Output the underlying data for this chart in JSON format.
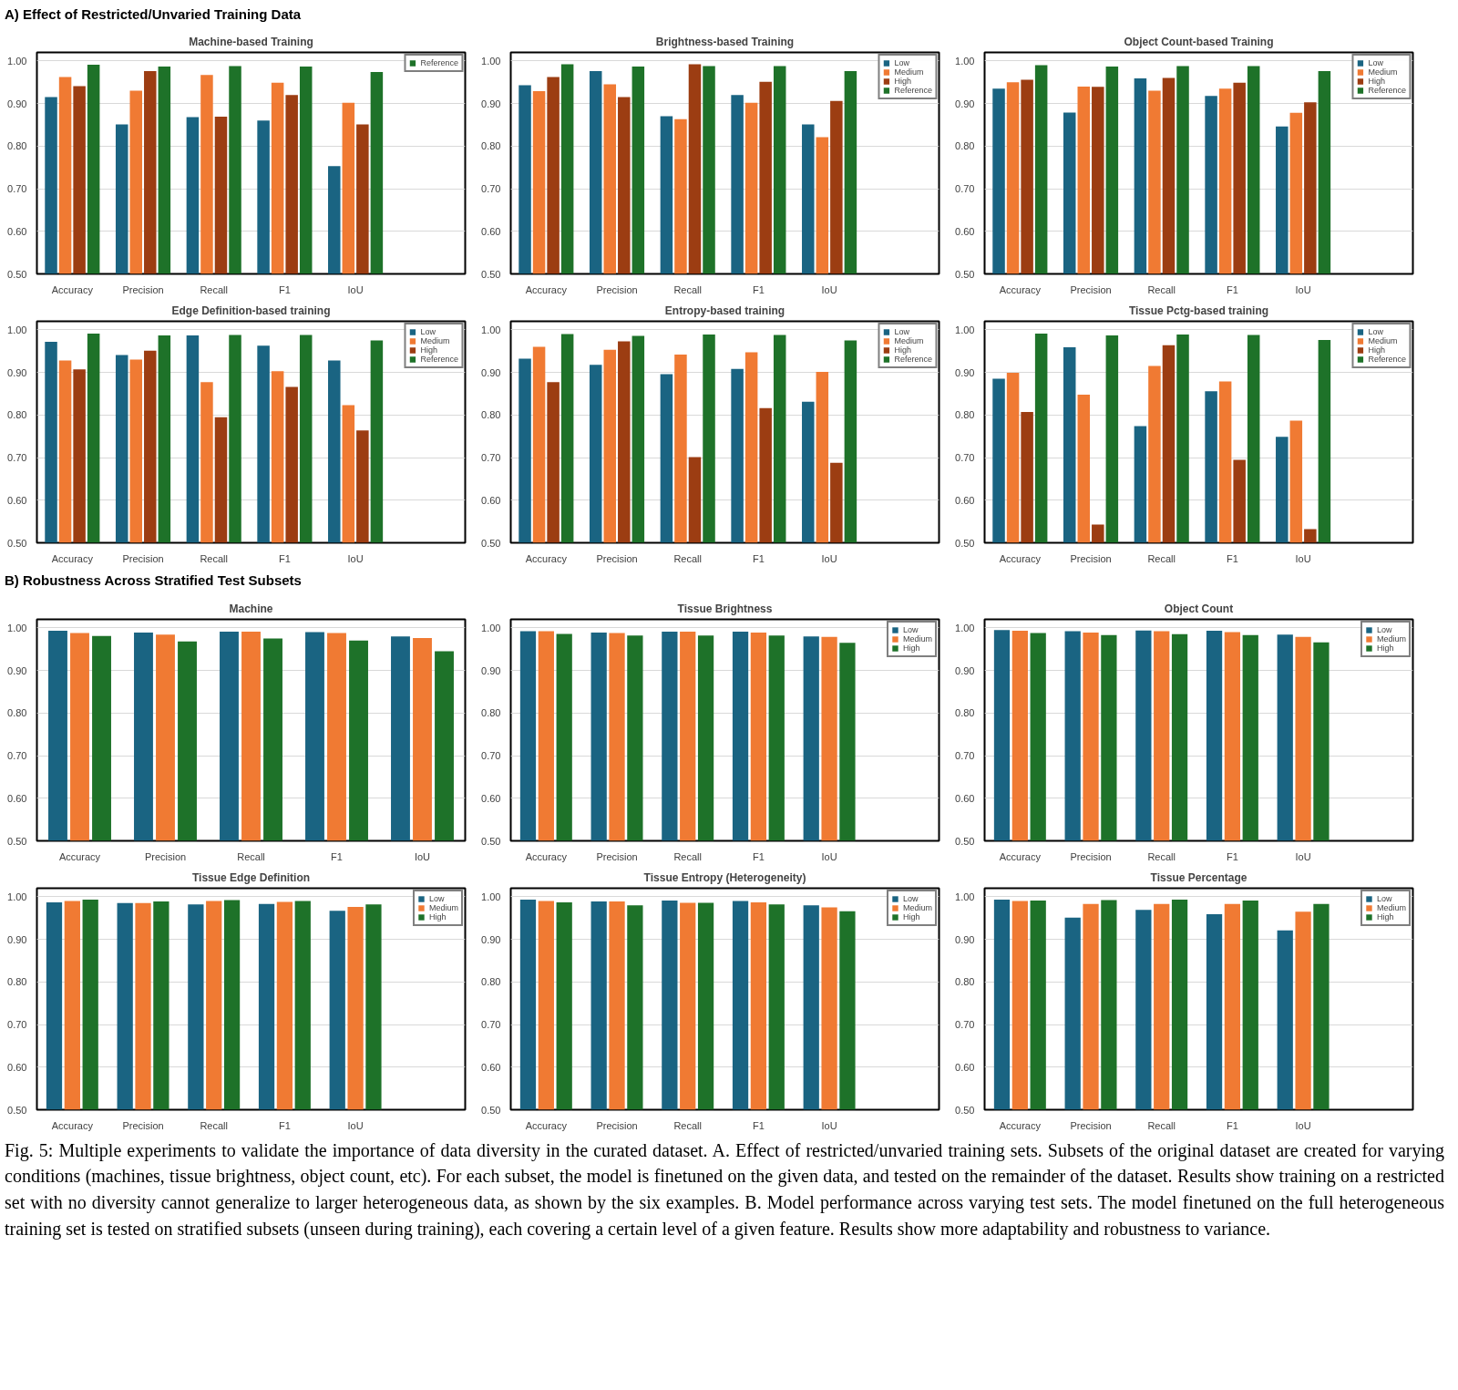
{
  "chart_data": [
    {
      "type": "bar",
      "title": "Machine-based Training",
      "annotations": [
        "A) Effect of Restricted/Unvaried Training Data"
      ],
      "categories": [
        "Accuracy",
        "Precision",
        "Recall",
        "F1",
        "IoU"
      ],
      "ylim": [
        0.5,
        1.02
      ],
      "yticks": [
        {
          "value": 0.5,
          "label": "0.50"
        },
        {
          "value": 0.6,
          "label": "0.60"
        },
        {
          "value": 0.7,
          "label": "0.70"
        },
        {
          "value": 0.8,
          "label": "0.80"
        },
        {
          "value": 0.9,
          "label": "0.90"
        },
        {
          "value": 1.0,
          "label": "1.00"
        }
      ],
      "grid": "y",
      "legend": "top right",
      "series": [
        {
          "color": "#1a6482",
          "values": [
            0.915,
            0.851,
            0.868,
            0.86,
            0.753
          ]
        },
        {
          "color": "#f07a33",
          "values": [
            0.962,
            0.93,
            0.967,
            0.949,
            0.902
          ]
        },
        {
          "color": "#9c3d12",
          "values": [
            0.941,
            0.976,
            0.869,
            0.92,
            0.851
          ]
        },
        {
          "name": "Reference",
          "color": "#1e7229",
          "values": [
            0.991,
            0.987,
            0.988,
            0.987,
            0.974
          ]
        }
      ]
    },
    {
      "type": "bar",
      "title": "Brightness-based Training",
      "categories": [
        "Accuracy",
        "Precision",
        "Recall",
        "F1",
        "IoU"
      ],
      "ylim": [
        0.5,
        1.02
      ],
      "yticks": [
        {
          "value": 0.5,
          "label": "0.50"
        },
        {
          "value": 0.6,
          "label": "0.60"
        },
        {
          "value": 0.7,
          "label": "0.70"
        },
        {
          "value": 0.8,
          "label": "0.80"
        },
        {
          "value": 0.9,
          "label": "0.90"
        },
        {
          "value": 1.0,
          "label": "1.00"
        }
      ],
      "grid": "y",
      "legend": "top right",
      "series": [
        {
          "name": "Low",
          "color": "#1a6482",
          "values": [
            0.943,
            0.976,
            0.87,
            0.92,
            0.851
          ]
        },
        {
          "name": "Medium",
          "color": "#f07a33",
          "values": [
            0.929,
            0.945,
            0.863,
            0.902,
            0.821
          ]
        },
        {
          "name": "High",
          "color": "#9c3d12",
          "values": [
            0.962,
            0.915,
            0.992,
            0.951,
            0.906
          ]
        },
        {
          "name": "Reference",
          "color": "#1e7229",
          "values": [
            0.992,
            0.987,
            0.988,
            0.988,
            0.976
          ]
        }
      ]
    },
    {
      "type": "bar",
      "title": "Object Count-based Training",
      "categories": [
        "Accuracy",
        "Precision",
        "Recall",
        "F1",
        "IoU"
      ],
      "ylim": [
        0.5,
        1.02
      ],
      "yticks": [
        {
          "value": 0.5,
          "label": "0.50"
        },
        {
          "value": 0.6,
          "label": "0.60"
        },
        {
          "value": 0.7,
          "label": "0.70"
        },
        {
          "value": 0.8,
          "label": "0.80"
        },
        {
          "value": 0.9,
          "label": "0.90"
        },
        {
          "value": 1.0,
          "label": "1.00"
        }
      ],
      "grid": "y",
      "legend": "top right",
      "series": [
        {
          "name": "Low",
          "color": "#1a6482",
          "values": [
            0.935,
            0.879,
            0.959,
            0.918,
            0.846
          ]
        },
        {
          "name": "Medium",
          "color": "#f07a33",
          "values": [
            0.95,
            0.94,
            0.93,
            0.935,
            0.878
          ]
        },
        {
          "name": "High",
          "color": "#9c3d12",
          "values": [
            0.956,
            0.939,
            0.96,
            0.949,
            0.903
          ]
        },
        {
          "name": "Reference",
          "color": "#1e7229",
          "values": [
            0.99,
            0.987,
            0.988,
            0.988,
            0.976
          ]
        }
      ]
    },
    {
      "type": "bar",
      "title": "Edge Definition-based training",
      "categories": [
        "Accuracy",
        "Precision",
        "Recall",
        "F1",
        "IoU"
      ],
      "ylim": [
        0.5,
        1.02
      ],
      "yticks": [
        {
          "value": 0.5,
          "label": "0.50"
        },
        {
          "value": 0.6,
          "label": "0.60"
        },
        {
          "value": 0.7,
          "label": "0.70"
        },
        {
          "value": 0.8,
          "label": "0.80"
        },
        {
          "value": 0.9,
          "label": "0.90"
        },
        {
          "value": 1.0,
          "label": "1.00"
        }
      ],
      "grid": "y",
      "legend": "top right",
      "series": [
        {
          "name": "Low",
          "color": "#1a6482",
          "values": [
            0.972,
            0.941,
            0.987,
            0.963,
            0.928
          ]
        },
        {
          "name": "Medium",
          "color": "#f07a33",
          "values": [
            0.928,
            0.93,
            0.877,
            0.903,
            0.823
          ]
        },
        {
          "name": "High",
          "color": "#9c3d12",
          "values": [
            0.907,
            0.951,
            0.795,
            0.866,
            0.764
          ]
        },
        {
          "name": "Reference",
          "color": "#1e7229",
          "values": [
            0.991,
            0.987,
            0.988,
            0.988,
            0.975
          ]
        }
      ]
    },
    {
      "type": "bar",
      "title": "Entropy-based training",
      "categories": [
        "Accuracy",
        "Precision",
        "Recall",
        "F1",
        "IoU"
      ],
      "ylim": [
        0.5,
        1.02
      ],
      "yticks": [
        {
          "value": 0.5,
          "label": "0.50"
        },
        {
          "value": 0.6,
          "label": "0.60"
        },
        {
          "value": 0.7,
          "label": "0.70"
        },
        {
          "value": 0.8,
          "label": "0.80"
        },
        {
          "value": 0.9,
          "label": "0.90"
        },
        {
          "value": 1.0,
          "label": "1.00"
        }
      ],
      "grid": "y",
      "legend": "top right",
      "series": [
        {
          "name": "Low",
          "color": "#1a6482",
          "values": [
            0.932,
            0.918,
            0.896,
            0.908,
            0.831
          ]
        },
        {
          "name": "Medium",
          "color": "#f07a33",
          "values": [
            0.96,
            0.953,
            0.942,
            0.947,
            0.901
          ]
        },
        {
          "name": "High",
          "color": "#9c3d12",
          "values": [
            0.877,
            0.973,
            0.701,
            0.816,
            0.688
          ]
        },
        {
          "name": "Reference",
          "color": "#1e7229",
          "values": [
            0.99,
            0.986,
            0.989,
            0.988,
            0.975
          ]
        }
      ]
    },
    {
      "type": "bar",
      "title": "Tissue Pctg-based training",
      "categories": [
        "Accuracy",
        "Precision",
        "Recall",
        "F1",
        "IoU"
      ],
      "ylim": [
        0.5,
        1.02
      ],
      "yticks": [
        {
          "value": 0.5,
          "label": "0.50"
        },
        {
          "value": 0.6,
          "label": "0.60"
        },
        {
          "value": 0.7,
          "label": "0.70"
        },
        {
          "value": 0.8,
          "label": "0.80"
        },
        {
          "value": 0.9,
          "label": "0.90"
        },
        {
          "value": 1.0,
          "label": "1.00"
        }
      ],
      "grid": "y",
      "legend": "top right",
      "series": [
        {
          "name": "Low",
          "color": "#1a6482",
          "values": [
            0.885,
            0.959,
            0.774,
            0.856,
            0.749
          ]
        },
        {
          "name": "Medium",
          "color": "#f07a33",
          "values": [
            0.899,
            0.848,
            0.915,
            0.879,
            0.787
          ]
        },
        {
          "name": "High",
          "color": "#9c3d12",
          "values": [
            0.807,
            0.543,
            0.964,
            0.695,
            0.532
          ]
        },
        {
          "name": "Reference",
          "color": "#1e7229",
          "values": [
            0.991,
            0.987,
            0.989,
            0.988,
            0.976
          ]
        }
      ]
    },
    {
      "type": "bar",
      "title": "Machine",
      "annotations": [
        "B) Robustness Across Stratified Test Subsets"
      ],
      "categories": [
        "Accuracy",
        "Precision",
        "Recall",
        "F1",
        "IoU"
      ],
      "ylim": [
        0.5,
        1.02
      ],
      "yticks": [
        {
          "value": 0.5,
          "label": "0.50"
        },
        {
          "value": 0.6,
          "label": "0.60"
        },
        {
          "value": 0.7,
          "label": "0.70"
        },
        {
          "value": 0.8,
          "label": "0.80"
        },
        {
          "value": 0.9,
          "label": "0.90"
        },
        {
          "value": 1.0,
          "label": "1.00"
        }
      ],
      "grid": "y",
      "series": [
        {
          "color": "#1a6482",
          "values": [
            0.993,
            0.989,
            0.991,
            0.99,
            0.98
          ]
        },
        {
          "color": "#f07a33",
          "values": [
            0.988,
            0.984,
            0.991,
            0.988,
            0.976
          ]
        },
        {
          "color": "#1e7229",
          "values": [
            0.981,
            0.968,
            0.975,
            0.97,
            0.945
          ]
        }
      ]
    },
    {
      "type": "bar",
      "title": "Tissue Brightness",
      "categories": [
        "Accuracy",
        "Precision",
        "Recall",
        "F1",
        "IoU"
      ],
      "ylim": [
        0.5,
        1.02
      ],
      "yticks": [
        {
          "value": 0.5,
          "label": "0.50"
        },
        {
          "value": 0.6,
          "label": "0.60"
        },
        {
          "value": 0.7,
          "label": "0.70"
        },
        {
          "value": 0.8,
          "label": "0.80"
        },
        {
          "value": 0.9,
          "label": "0.90"
        },
        {
          "value": 1.0,
          "label": "1.00"
        }
      ],
      "grid": "y",
      "legend": "top right",
      "series": [
        {
          "name": "Low",
          "color": "#1a6482",
          "values": [
            0.992,
            0.989,
            0.991,
            0.991,
            0.98
          ]
        },
        {
          "name": "Medium",
          "color": "#f07a33",
          "values": [
            0.992,
            0.988,
            0.991,
            0.989,
            0.979
          ]
        },
        {
          "name": "High",
          "color": "#1e7229",
          "values": [
            0.986,
            0.982,
            0.982,
            0.982,
            0.965
          ]
        }
      ]
    },
    {
      "type": "bar",
      "title": "Object Count",
      "categories": [
        "Accuracy",
        "Precision",
        "Recall",
        "F1",
        "IoU"
      ],
      "ylim": [
        0.5,
        1.02
      ],
      "yticks": [
        {
          "value": 0.5,
          "label": "0.50"
        },
        {
          "value": 0.6,
          "label": "0.60"
        },
        {
          "value": 0.7,
          "label": "0.70"
        },
        {
          "value": 0.8,
          "label": "0.80"
        },
        {
          "value": 0.9,
          "label": "0.90"
        },
        {
          "value": 1.0,
          "label": "1.00"
        }
      ],
      "grid": "y",
      "legend": "top right",
      "series": [
        {
          "name": "Low",
          "color": "#1a6482",
          "values": [
            0.995,
            0.992,
            0.994,
            0.993,
            0.984
          ]
        },
        {
          "name": "Medium",
          "color": "#f07a33",
          "values": [
            0.993,
            0.989,
            0.992,
            0.99,
            0.979
          ]
        },
        {
          "name": "High",
          "color": "#1e7229",
          "values": [
            0.988,
            0.983,
            0.985,
            0.983,
            0.966
          ]
        }
      ]
    },
    {
      "type": "bar",
      "title": "Tissue Edge Definition",
      "categories": [
        "Accuracy",
        "Precision",
        "Recall",
        "F1",
        "IoU"
      ],
      "ylim": [
        0.5,
        1.02
      ],
      "yticks": [
        {
          "value": 0.5,
          "label": "0.50"
        },
        {
          "value": 0.6,
          "label": "0.60"
        },
        {
          "value": 0.7,
          "label": "0.70"
        },
        {
          "value": 0.8,
          "label": "0.80"
        },
        {
          "value": 0.9,
          "label": "0.90"
        },
        {
          "value": 1.0,
          "label": "1.00"
        }
      ],
      "grid": "y",
      "legend": "top right",
      "series": [
        {
          "name": "Low",
          "color": "#1a6482",
          "values": [
            0.987,
            0.985,
            0.982,
            0.983,
            0.967
          ]
        },
        {
          "name": "Medium",
          "color": "#f07a33",
          "values": [
            0.99,
            0.985,
            0.99,
            0.988,
            0.976
          ]
        },
        {
          "name": "High",
          "color": "#1e7229",
          "values": [
            0.993,
            0.989,
            0.992,
            0.99,
            0.982
          ]
        }
      ]
    },
    {
      "type": "bar",
      "title": "Tissue Entropy (Heterogeneity)",
      "categories": [
        "Accuracy",
        "Precision",
        "Recall",
        "F1",
        "IoU"
      ],
      "ylim": [
        0.5,
        1.02
      ],
      "yticks": [
        {
          "value": 0.5,
          "label": "0.50"
        },
        {
          "value": 0.6,
          "label": "0.60"
        },
        {
          "value": 0.7,
          "label": "0.70"
        },
        {
          "value": 0.8,
          "label": "0.80"
        },
        {
          "value": 0.9,
          "label": "0.90"
        },
        {
          "value": 1.0,
          "label": "1.00"
        }
      ],
      "grid": "y",
      "legend": "top right",
      "series": [
        {
          "name": "Low",
          "color": "#1a6482",
          "values": [
            0.993,
            0.989,
            0.991,
            0.99,
            0.98
          ]
        },
        {
          "name": "Medium",
          "color": "#f07a33",
          "values": [
            0.99,
            0.989,
            0.986,
            0.987,
            0.975
          ]
        },
        {
          "name": "High",
          "color": "#1e7229",
          "values": [
            0.987,
            0.98,
            0.986,
            0.982,
            0.966
          ]
        }
      ]
    },
    {
      "type": "bar",
      "title": "Tissue Percentage",
      "annotations": [
        "Fig. 5: Multiple experiments to validate the importance of data diversity in the curated dataset. A. Effect of restricted/unvaried training sets. Subsets of the original dataset are created for varying conditions (machines, tissue brightness, object count, etc). For each subset, the model is finetuned on the given data, and tested on the remainder of the dataset. Results show training on a restricted set with no diversity cannot generalize to larger heterogeneous data, as shown by the six examples. B. Model performance across varying test sets. The model finetuned on the full heterogeneous training set is tested on stratified subsets (unseen during training), each covering a certain level of a given feature. Results show more adaptability and robustness to variance."
      ],
      "categories": [
        "Accuracy",
        "Precision",
        "Recall",
        "F1",
        "IoU"
      ],
      "ylim": [
        0.5,
        1.02
      ],
      "yticks": [
        {
          "value": 0.5,
          "label": "0.50"
        },
        {
          "value": 0.6,
          "label": "0.60"
        },
        {
          "value": 0.7,
          "label": "0.70"
        },
        {
          "value": 0.8,
          "label": "0.80"
        },
        {
          "value": 0.9,
          "label": "0.90"
        },
        {
          "value": 1.0,
          "label": "1.00"
        }
      ],
      "grid": "y",
      "legend": "top right",
      "series": [
        {
          "name": "Low",
          "color": "#1a6482",
          "values": [
            0.993,
            0.951,
            0.969,
            0.959,
            0.921
          ]
        },
        {
          "name": "Medium",
          "color": "#f07a33",
          "values": [
            0.99,
            0.983,
            0.983,
            0.983,
            0.965
          ]
        },
        {
          "name": "High",
          "color": "#1e7229",
          "values": [
            0.991,
            0.992,
            0.993,
            0.991,
            0.983
          ]
        }
      ]
    }
  ]
}
